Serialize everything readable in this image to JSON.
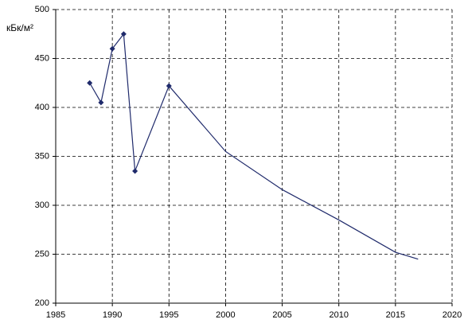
{
  "chart_data": {
    "type": "line",
    "y_label": "кБк/м²",
    "series": [
      {
        "color": "#1f2a6b",
        "markers": true,
        "x": [
          1988,
          1989,
          1990,
          1991,
          1992,
          1995
        ],
        "values": [
          425,
          405,
          460,
          475,
          335,
          422
        ]
      },
      {
        "color": "#1f2a6b",
        "markers": false,
        "x": [
          1995,
          2000,
          2005,
          2010,
          2015,
          2017
        ],
        "values": [
          422,
          355,
          316,
          285,
          252,
          245
        ]
      }
    ],
    "xlim": [
      1985,
      2020
    ],
    "xticks": [
      1985,
      1990,
      1995,
      2000,
      2005,
      2010,
      2015,
      2020
    ],
    "ylim": [
      200,
      500
    ],
    "yticks": [
      200,
      250,
      300,
      350,
      400,
      450,
      500
    ],
    "grid": true
  }
}
